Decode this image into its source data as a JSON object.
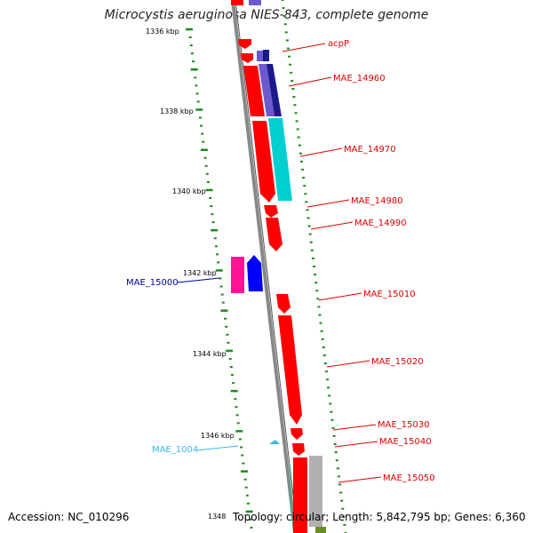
{
  "title": "Microcystis aeruginosa NIES-843, complete genome",
  "accession": "Accession: NC_010296",
  "topology": "Topology: circular; Length: 5,842,795 bp; Genes: 6,360",
  "colors": {
    "gene_red": "#ff0000",
    "gene_blue": "#0000ff",
    "gene_navy": "#1a1a8c",
    "gene_purple": "#6a5acd",
    "gene_pink": "#ff1493",
    "gene_cyan": "#00cfcf",
    "gene_gray": "#b0b0b0",
    "gene_olive": "#6b8e23",
    "label_red": "#dd0000",
    "label_blue": "#00009c",
    "label_cyan": "#33bbee",
    "backbone": "#888888",
    "tick": "#1a8a1a"
  },
  "scale_labels": [
    "1336 kbp",
    "1338 kbp",
    "1340 kbp",
    "1342 kbp",
    "1344 kbp",
    "1346 kbp",
    "1348"
  ],
  "gene_labels": [
    "acpP",
    "MAE_14960",
    "MAE_14970",
    "MAE_14980",
    "MAE_14990",
    "MAE_15000",
    "MAE_15010",
    "MAE_15020",
    "MAE_15030",
    "MAE_15040",
    "MAE_1004",
    "MAE_15050"
  ]
}
